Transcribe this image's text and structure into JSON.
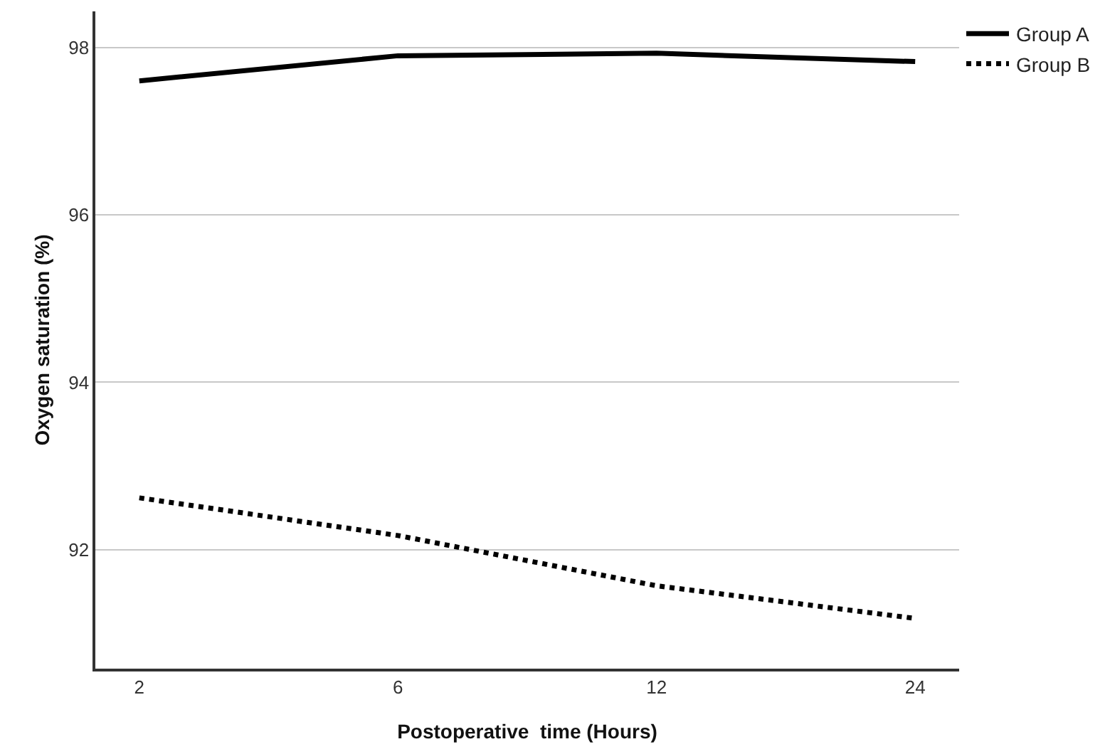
{
  "chart_data": {
    "type": "line",
    "xlabel": "Postoperative  time (Hours)",
    "ylabel": "Oxygen saturation (%)",
    "categories": [
      "2",
      "6",
      "12",
      "24"
    ],
    "series": [
      {
        "name": "Group A",
        "color": "#000000",
        "values": [
          97.6,
          97.9,
          97.93,
          97.83
        ],
        "line_style": "solid"
      },
      {
        "name": "Group B",
        "color": "#000000",
        "values": [
          92.62,
          92.17,
          91.57,
          91.18
        ],
        "line_style": "dotted"
      }
    ],
    "ylim": [
      90.58,
      98.43
    ],
    "yticks": [
      92,
      94,
      96,
      98
    ],
    "grid": "y",
    "legend": "top right",
    "marker": "none"
  }
}
